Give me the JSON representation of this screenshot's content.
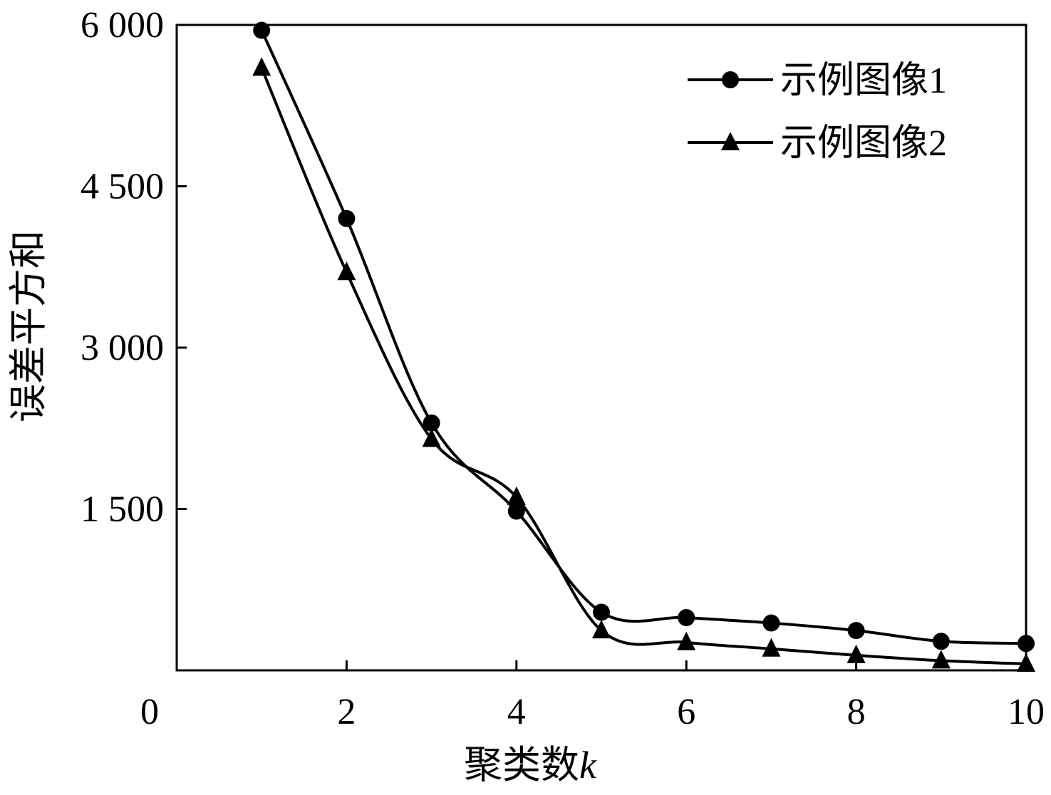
{
  "chart_data": {
    "type": "line",
    "xlabel": "聚类数",
    "xlabel_var": "k",
    "ylabel": "误差平方和",
    "x": [
      1,
      2,
      3,
      4,
      5,
      6,
      7,
      8,
      9,
      10
    ],
    "xlim": [
      0,
      10
    ],
    "ylim": [
      0,
      6000
    ],
    "xticks": [
      0,
      2,
      4,
      6,
      8,
      10
    ],
    "xtick_labels": [
      "0",
      "2",
      "4",
      "6",
      "8",
      "10"
    ],
    "yticks": [
      1500,
      3000,
      4500,
      6000
    ],
    "ytick_labels": [
      "1 500",
      "3 000",
      "4 500",
      "6 000"
    ],
    "grid": false,
    "legend_position": "top-right",
    "series": [
      {
        "name": "示例图像1",
        "marker": "circle",
        "color": "#000000",
        "values": [
          5950,
          4200,
          2300,
          1480,
          540,
          490,
          440,
          370,
          270,
          250
        ]
      },
      {
        "name": "示例图像2",
        "marker": "triangle",
        "color": "#000000",
        "values": [
          5600,
          3700,
          2150,
          1610,
          370,
          260,
          200,
          140,
          90,
          60
        ]
      }
    ]
  }
}
